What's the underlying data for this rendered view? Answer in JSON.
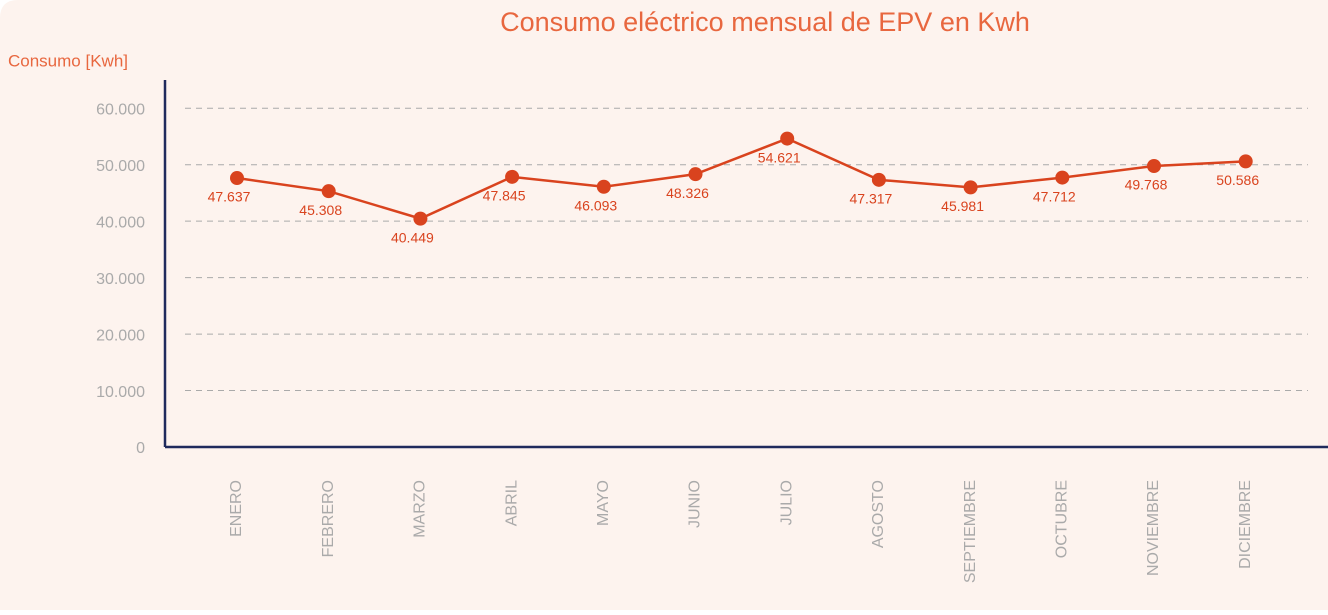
{
  "chart_data": {
    "type": "line",
    "title": "Consumo eléctrico mensual de EPV en Kwh",
    "y_label": "Consumo [Kwh]",
    "categories": [
      "ENERO",
      "FEBRERO",
      "MARZO",
      "ABRIL",
      "MAYO",
      "JUNIO",
      "JULIO",
      "AGOSTO",
      "SEPTIEMBRE",
      "OCTUBRE",
      "NOVIEMBRE",
      "DICIEMBRE"
    ],
    "series": [
      {
        "name": "Consumo",
        "color": "#d9431e",
        "values": [
          47637,
          45308,
          40449,
          47845,
          46093,
          48326,
          54621,
          47317,
          45981,
          47712,
          49768,
          50586
        ],
        "value_labels": [
          "47.637",
          "45.308",
          "40.449",
          "47.845",
          "46.093",
          "48.326",
          "54.621",
          "47.317",
          "45.981",
          "47.712",
          "49.768",
          "50.586"
        ]
      }
    ],
    "ylim": [
      0,
      65000
    ],
    "yticks": [
      0,
      {
        "value": 10000,
        "label": "10.000"
      },
      {
        "value": 20000,
        "label": "20.000"
      },
      {
        "value": 30000,
        "label": "30.000"
      },
      {
        "value": 40000,
        "label": "40.000"
      },
      {
        "value": 50000,
        "label": "50.000"
      },
      {
        "value": 60000,
        "label": "60.000"
      }
    ],
    "grid": true
  }
}
